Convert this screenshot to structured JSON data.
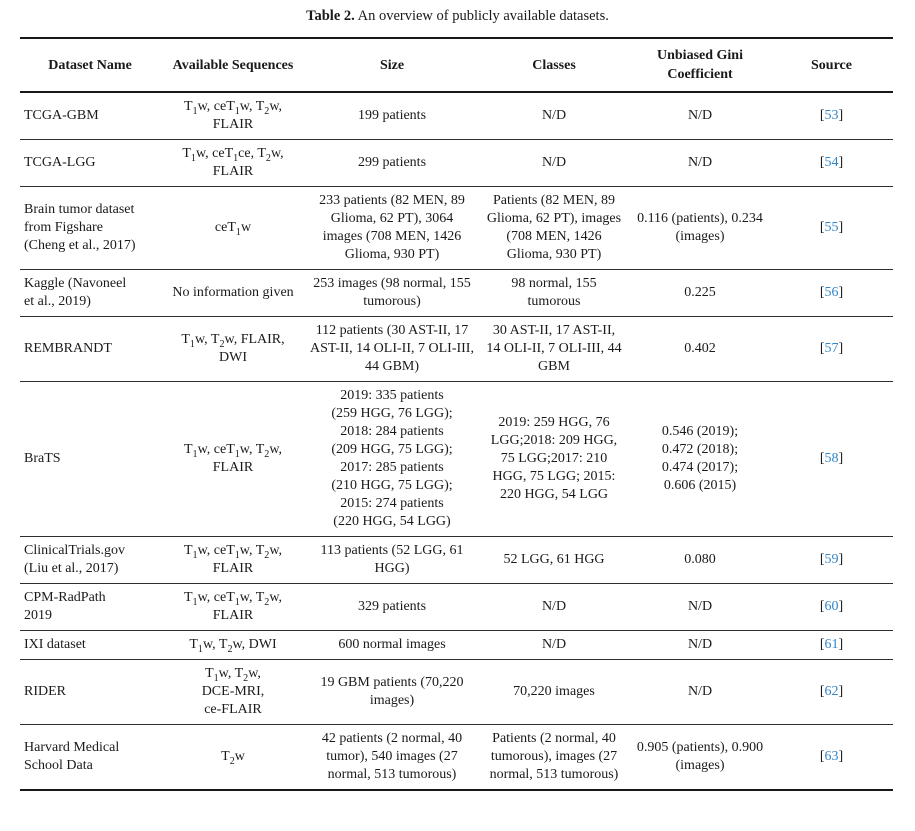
{
  "caption": {
    "label": "Table 2.",
    "text": "An overview of publicly available datasets."
  },
  "colors": {
    "citation_blue": "#3286c8",
    "text": "#1a1a1a",
    "rule": "#181818"
  },
  "table": {
    "bracket_open": "[",
    "bracket_close": "]",
    "columns": [
      "Dataset Name",
      "Available Sequences",
      "Size",
      "Classes",
      "Unbiased Gini Coefficient",
      "Source"
    ],
    "rows": [
      {
        "dataset": "TCGA-GBM",
        "sequences": "T~1~w, ceT~1~w, T~2~w, FLAIR",
        "size": "199 patients",
        "classes": "N/D",
        "gini": "N/D",
        "source": "53"
      },
      {
        "dataset": "TCGA-LGG",
        "sequences": "T~1~w, ceT~1~ce, T~2~w, FLAIR",
        "size": "299 patients",
        "classes": "N/D",
        "gini": "N/D",
        "source": "54"
      },
      {
        "dataset": "Brain tumor dataset from Figshare (Cheng et al., 2017)",
        "sequences": "ceT~1~w",
        "size": "233 patients (82 MEN, 89 Glioma, 62 PT), 3064 images (708 MEN, 1426 Glioma, 930 PT)",
        "classes": "Patients (82 MEN, 89 Glioma, 62 PT), images (708 MEN, 1426 Glioma, 930 PT)",
        "gini": "0.116 (patients), 0.234 (images)",
        "source": "55"
      },
      {
        "dataset": "Kaggle (Navoneel et al., 2019)",
        "sequences": "No information given",
        "size": "253 images (98 normal, 155 tumorous)",
        "classes": "98 normal, 155 tumorous",
        "gini": "0.225",
        "source": "56"
      },
      {
        "dataset": "REMBRANDT",
        "sequences": "T~1~w, T~2~w, FLAIR, DWI",
        "size": "112 patients (30 AST-II, 17 AST-II, 14 OLI-II, 7 OLI-III, 44 GBM)",
        "classes": "30 AST-II, 17 AST-II, 14 OLI-II, 7 OLI-III, 44 GBM",
        "gini": "0.402",
        "source": "57"
      },
      {
        "dataset": "BraTS",
        "sequences": "T~1~w, ceT~1~w, T~2~w, FLAIR",
        "size": "2019: 335 patients\n(259 HGG, 76 LGG);\n2018: 284 patients\n(209 HGG, 75 LGG);\n2017: 285 patients\n(210 HGG, 75 LGG);\n2015: 274 patients\n(220 HGG, 54 LGG)",
        "classes": "2019: 259 HGG, 76 LGG;2018: 209 HGG, 75 LGG;2017: 210 HGG, 75 LGG; 2015: 220 HGG, 54 LGG",
        "gini": "0.546 (2019);\n0.472 (2018);\n0.474 (2017);\n0.606 (2015)",
        "source": "58"
      },
      {
        "dataset": "ClinicalTrials.gov (Liu et al., 2017)",
        "sequences": "T~1~w, ceT~1~w, T~2~w, FLAIR",
        "size": "113 patients (52 LGG, 61 HGG)",
        "classes": "52 LGG, 61 HGG",
        "gini": "0.080",
        "source": "59"
      },
      {
        "dataset": "CPM-RadPath 2019",
        "sequences": "T~1~w, ceT~1~w, T~2~w, FLAIR",
        "size": "329 patients",
        "classes": "N/D",
        "gini": "N/D",
        "source": "60"
      },
      {
        "dataset": "IXI dataset",
        "sequences": "T~1~w, T~2~w, DWI",
        "size": "600 normal images",
        "classes": "N/D",
        "gini": "N/D",
        "source": "61"
      },
      {
        "dataset": "RIDER",
        "sequences": "T~1~w, T~2~w,\nDCE-MRI,\nce-FLAIR",
        "size": "19 GBM patients (70,220 images)",
        "classes": "70,220 images",
        "gini": "N/D",
        "source": "62"
      },
      {
        "dataset": "Harvard Medical School Data",
        "sequences": "T~2~w",
        "size": "42 patients (2 normal, 40 tumor), 540 images (27 normal, 513 tumorous)",
        "classes": "Patients (2 normal, 40 tumorous), images (27 normal, 513 tumorous)",
        "gini": "0.905 (patients), 0.900 (images)",
        "source": "63"
      }
    ]
  }
}
